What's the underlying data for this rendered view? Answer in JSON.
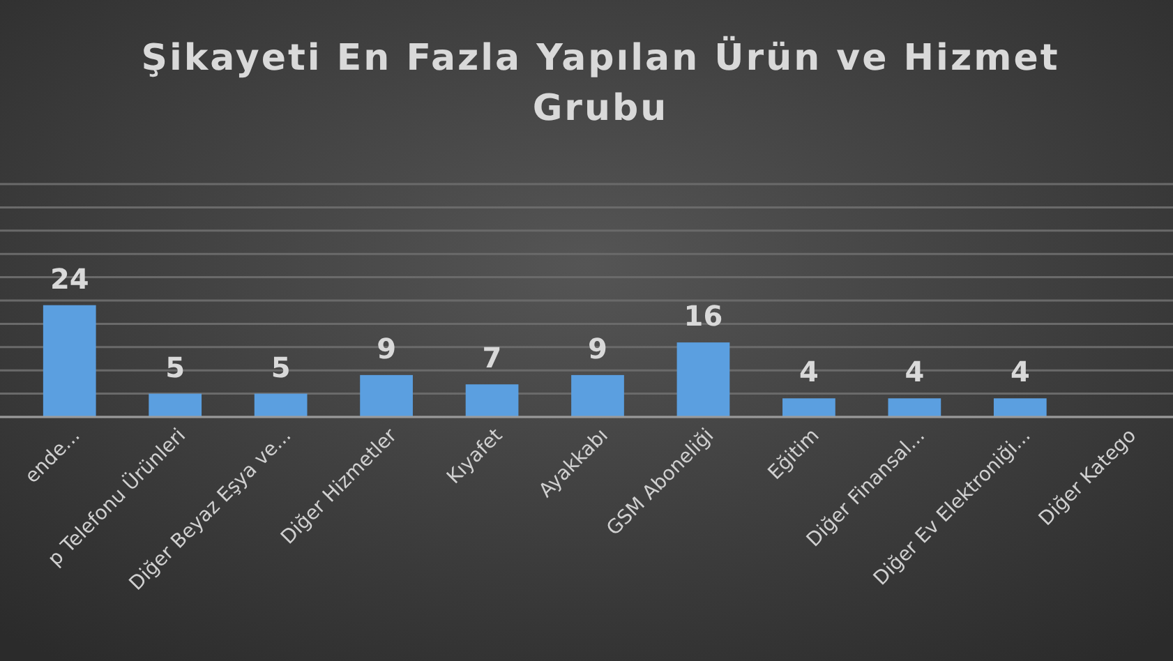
{
  "chart_data": {
    "type": "bar",
    "title": "Şikayeti En Fazla Yapılan Ürün ve Hizmet Grubu",
    "categories": [
      "ende...",
      "p Telefonu Ürünleri",
      "Diğer Beyaz Eşya ve...",
      "Diğer Hizmetler",
      "Kıyafet",
      "Ayakkabı",
      "GSM Aboneliği",
      "Eğitim",
      "Diğer Finansal...",
      "Diğer Ev Elektroniği...",
      "Diğer Katego"
    ],
    "values": [
      24,
      5,
      5,
      9,
      7,
      9,
      16,
      4,
      4,
      4,
      null
    ],
    "color": "#5b9fe0",
    "ylim": [
      0,
      50
    ],
    "yticks": [
      0,
      5,
      10,
      15,
      20,
      25,
      30,
      35,
      40,
      45,
      50
    ],
    "grid": "y",
    "tick_labels": "x",
    "data_labels": true
  }
}
